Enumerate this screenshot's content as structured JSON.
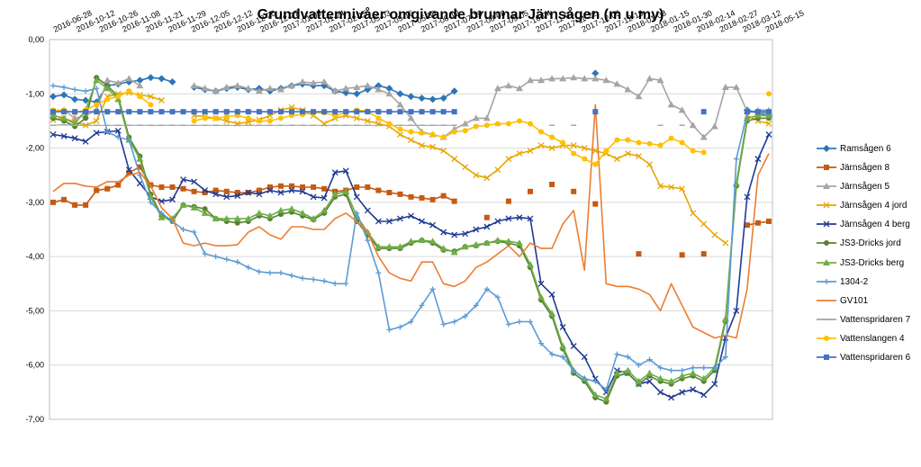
{
  "chart_data": {
    "type": "line",
    "title": "Grundvattennivåer omgivande brunnar Järnsågen (m u my)",
    "xlabel": "",
    "ylabel": "",
    "ylim": [
      -7,
      0
    ],
    "y_ticks": [
      "0,00",
      "-1,00",
      "-2,00",
      "-3,00",
      "-4,00",
      "-5,00",
      "-6,00",
      "-7,00"
    ],
    "y_tick_values": [
      0,
      -1,
      -2,
      -3,
      -4,
      -5,
      -6,
      -7
    ],
    "x_tick_labels": [
      "2016-06-28",
      "2016-10-12",
      "2016-10-26",
      "2016-11-08",
      "2016-11-21",
      "2016-11-29",
      "2016-12-05",
      "2016-12-12",
      "2016-12-20",
      "2016-12-27",
      "2017-01-09",
      "2017-01-24",
      "2017-02-15",
      "2017-05-03",
      "2017-05-16",
      "2017-05-30",
      "2017-06-12",
      "2017-07-10",
      "2017-08-08",
      "2017-09-05",
      "2017-10-04",
      "2017-11-01",
      "2017-11-22",
      "2017-12-05",
      "2017-12-18",
      "2018-01-03",
      "2018-01-15",
      "2018-01-30",
      "2018-02-14",
      "2018-02-27",
      "2018-03-12",
      "2018-05-15"
    ],
    "x_count": 67,
    "grid": "horizontal",
    "legend_position": "right",
    "series": [
      {
        "name": "Ramsågen 6",
        "color": "#2E75B6",
        "marker": "diamond",
        "values": [
          -1.05,
          -1.02,
          -1.1,
          -1.12,
          -1.15,
          -0.85,
          -0.82,
          -0.78,
          -0.75,
          -0.7,
          -0.72,
          -0.78,
          null,
          -0.88,
          -0.92,
          -0.95,
          -0.9,
          -0.88,
          -0.92,
          -0.9,
          -0.95,
          -0.9,
          -0.85,
          -0.82,
          -0.85,
          -0.85,
          -0.95,
          -0.98,
          -1.0,
          -0.92,
          -0.85,
          -0.9,
          -1.0,
          -1.05,
          -1.08,
          -1.1,
          -1.08,
          -0.95,
          null,
          null,
          null,
          null,
          null,
          null,
          null,
          null,
          null,
          null,
          null,
          null,
          -0.62,
          null,
          null,
          null,
          null,
          null,
          null,
          null,
          null,
          null,
          null,
          null,
          null,
          null,
          -1.3,
          -1.35,
          -1.4
        ]
      },
      {
        "name": "Järnsågen 8",
        "color": "#C55A11",
        "marker": "square",
        "values": [
          -3.0,
          -2.95,
          -3.05,
          -3.05,
          -2.78,
          -2.75,
          -2.68,
          -2.45,
          -2.35,
          -2.68,
          -2.72,
          -2.72,
          -2.75,
          -2.8,
          -2.82,
          -2.78,
          -2.8,
          -2.82,
          -2.82,
          -2.78,
          -2.72,
          -2.7,
          -2.7,
          -2.72,
          -2.72,
          -2.75,
          -2.8,
          -2.78,
          -2.72,
          -2.72,
          -2.78,
          -2.82,
          -2.85,
          -2.9,
          -2.92,
          -2.95,
          -2.88,
          -2.98,
          null,
          null,
          -3.28,
          null,
          -2.98,
          null,
          -2.8,
          null,
          -2.67,
          null,
          -2.8,
          null,
          -3.03,
          null,
          null,
          null,
          -3.95,
          null,
          null,
          null,
          -3.97,
          null,
          -3.95,
          null,
          null,
          null,
          -3.42,
          -3.38,
          -3.35
        ]
      },
      {
        "name": "Järnsågen 5",
        "color": "#A5A5A5",
        "marker": "triangle",
        "values": [
          -1.35,
          -1.3,
          -1.45,
          -1.4,
          -1.3,
          -0.75,
          -0.8,
          -0.72,
          -0.85,
          null,
          null,
          null,
          null,
          -0.85,
          -0.9,
          -0.95,
          -0.88,
          -0.85,
          -0.9,
          -0.95,
          -0.9,
          -0.92,
          -0.85,
          -0.78,
          -0.8,
          -0.78,
          -0.95,
          -0.9,
          -0.88,
          -0.85,
          -0.92,
          -1.0,
          -1.2,
          -1.45,
          -1.7,
          -1.75,
          -1.8,
          -1.65,
          -1.55,
          -1.45,
          -1.45,
          -0.9,
          -0.85,
          -0.9,
          -0.75,
          -0.75,
          -0.72,
          -0.72,
          -0.7,
          -0.72,
          -0.72,
          -0.75,
          -0.82,
          -0.92,
          -1.05,
          -0.72,
          -0.75,
          -1.2,
          -1.3,
          -1.58,
          -1.8,
          -1.6,
          -0.88,
          -0.88,
          -1.32,
          -1.35,
          -1.35
        ]
      },
      {
        "name": "Järnsågen 4 jord",
        "color": "#E6A700",
        "marker": "x",
        "values": [
          -1.48,
          -1.45,
          -1.52,
          -1.58,
          -1.5,
          -1.05,
          -1.0,
          -0.98,
          -1.02,
          -1.05,
          -1.12,
          null,
          null,
          -1.4,
          -1.42,
          -1.45,
          -1.5,
          -1.55,
          -1.52,
          -1.48,
          -1.4,
          -1.3,
          -1.25,
          -1.3,
          -1.4,
          -1.55,
          -1.45,
          -1.4,
          -1.45,
          -1.5,
          -1.55,
          -1.6,
          -1.75,
          -1.85,
          -1.95,
          -1.98,
          -2.05,
          -2.2,
          -2.35,
          -2.5,
          -2.55,
          -2.4,
          -2.2,
          -2.1,
          -2.05,
          -1.95,
          -2.0,
          -1.95,
          -1.95,
          -2.0,
          -2.05,
          -2.1,
          -2.2,
          -2.1,
          -2.15,
          -2.3,
          -2.7,
          -2.72,
          -2.75,
          -3.2,
          -3.4,
          -3.6,
          -3.75,
          null,
          -1.4,
          -1.5,
          -1.55
        ]
      },
      {
        "name": "Järnsågen 4 berg",
        "color": "#1F3A93",
        "marker": "x",
        "values": [
          -1.75,
          -1.78,
          -1.82,
          -1.88,
          -1.72,
          -1.7,
          -1.68,
          -2.4,
          -2.65,
          -2.9,
          -2.98,
          -2.95,
          -2.58,
          -2.62,
          -2.78,
          -2.85,
          -2.9,
          -2.88,
          -2.82,
          -2.85,
          -2.78,
          -2.82,
          -2.78,
          -2.8,
          -2.9,
          -2.92,
          -2.45,
          -2.42,
          -2.9,
          -3.15,
          -3.35,
          -3.35,
          -3.3,
          -3.25,
          -3.35,
          -3.42,
          -3.55,
          -3.6,
          -3.58,
          -3.5,
          -3.45,
          -3.35,
          -3.3,
          -3.28,
          -3.3,
          -4.5,
          -4.7,
          -5.3,
          -5.65,
          -5.85,
          -6.25,
          -6.5,
          -6.1,
          -6.15,
          -6.35,
          -6.3,
          -6.5,
          -6.6,
          -6.5,
          -6.45,
          -6.55,
          -6.35,
          -5.5,
          -5.0,
          -2.9,
          -2.2,
          -1.75
        ]
      },
      {
        "name": "JS3-Dricks jord",
        "color": "#548235",
        "marker": "circle",
        "values": [
          -1.45,
          -1.5,
          -1.6,
          -1.45,
          -0.7,
          -0.85,
          -1.05,
          -1.8,
          -2.15,
          -2.85,
          -3.25,
          -3.35,
          -3.05,
          -3.08,
          -3.12,
          -3.3,
          -3.35,
          -3.38,
          -3.35,
          -3.25,
          -3.3,
          -3.22,
          -3.18,
          -3.25,
          -3.32,
          -3.2,
          -2.9,
          -2.85,
          -3.35,
          -3.6,
          -3.85,
          -3.85,
          -3.85,
          -3.75,
          -3.7,
          -3.75,
          -3.88,
          -3.9,
          -3.82,
          -3.8,
          -3.75,
          -3.72,
          -3.75,
          -3.8,
          -4.2,
          -4.8,
          -5.1,
          -5.7,
          -6.15,
          -6.3,
          -6.6,
          -6.68,
          -6.2,
          -6.15,
          -6.35,
          -6.2,
          -6.3,
          -6.35,
          -6.25,
          -6.2,
          -6.3,
          -6.1,
          -5.2,
          -2.7,
          -1.5,
          -1.45,
          -1.45
        ]
      },
      {
        "name": "JS3-Dricks berg",
        "color": "#70AD47",
        "marker": "triangle",
        "values": [
          -1.4,
          -1.45,
          -1.55,
          -1.3,
          -0.75,
          -0.9,
          -1.1,
          -1.85,
          -2.2,
          -2.9,
          -3.28,
          -3.3,
          -3.05,
          -3.1,
          -3.2,
          -3.3,
          -3.3,
          -3.3,
          -3.3,
          -3.2,
          -3.25,
          -3.15,
          -3.12,
          -3.2,
          -3.3,
          -3.15,
          -2.85,
          -2.8,
          -3.25,
          -3.55,
          -3.82,
          -3.82,
          -3.82,
          -3.72,
          -3.7,
          -3.72,
          -3.85,
          -3.92,
          -3.82,
          -3.78,
          -3.75,
          -3.7,
          -3.72,
          -3.75,
          -4.15,
          -4.75,
          -5.05,
          -5.65,
          -6.1,
          -6.25,
          -6.55,
          -6.62,
          -6.15,
          -6.1,
          -6.3,
          -6.15,
          -6.25,
          -6.3,
          -6.2,
          -6.15,
          -6.25,
          -6.05,
          -5.15,
          -2.65,
          -1.45,
          -1.4,
          -1.4
        ]
      },
      {
        "name": "1304-2",
        "color": "#5B9BD5",
        "marker": "plus",
        "values": [
          -0.85,
          -0.88,
          -0.92,
          -0.95,
          -0.9,
          -1.7,
          -1.8,
          -1.85,
          -2.5,
          -3.0,
          -3.2,
          -3.35,
          -3.5,
          -3.55,
          -3.95,
          -4.0,
          -4.05,
          -4.1,
          -4.2,
          -4.28,
          -4.3,
          -4.3,
          -4.35,
          -4.4,
          -4.42,
          -4.45,
          -4.5,
          -4.5,
          -3.2,
          -3.7,
          -4.3,
          -5.35,
          -5.3,
          -5.2,
          -4.9,
          -4.6,
          -5.25,
          -5.2,
          -5.1,
          -4.9,
          -4.6,
          -4.75,
          -5.25,
          -5.2,
          -5.2,
          -5.6,
          -5.8,
          -5.85,
          -6.1,
          -6.25,
          -6.3,
          -6.45,
          -5.8,
          -5.85,
          -6.0,
          -5.9,
          -6.05,
          -6.1,
          -6.1,
          -6.05,
          -6.05,
          -6.05,
          -5.85,
          -2.2,
          -1.35,
          -1.3,
          -1.3
        ]
      },
      {
        "name": "GV101",
        "color": "#ED7D31",
        "marker": "none",
        "values": [
          -2.8,
          -2.65,
          -2.65,
          -2.7,
          -2.72,
          -2.62,
          -2.62,
          -2.5,
          -2.45,
          -2.7,
          -3.1,
          -3.3,
          -3.75,
          -3.8,
          -3.75,
          -3.8,
          -3.8,
          -3.78,
          -3.55,
          -3.45,
          -3.6,
          -3.68,
          -3.45,
          -3.45,
          -3.5,
          -3.5,
          -3.3,
          -3.2,
          -3.35,
          -3.55,
          -4.0,
          -4.3,
          -4.4,
          -4.45,
          -4.1,
          -4.1,
          -4.5,
          -4.55,
          -4.45,
          -4.2,
          -4.1,
          -3.95,
          -3.8,
          -4.0,
          -3.75,
          -3.85,
          -3.85,
          -3.4,
          -3.15,
          -4.25,
          -1.2,
          -4.5,
          -4.55,
          -4.55,
          -4.6,
          -4.7,
          -5.0,
          -4.5,
          -4.9,
          -5.3,
          -5.4,
          -5.5,
          -5.45,
          -5.5,
          -4.6,
          -2.5,
          -2.1
        ]
      },
      {
        "name": "Vattenspridaren 7",
        "color": "#A5A5A5",
        "marker": "dash",
        "values": [
          -1.58,
          -1.57,
          -1.58,
          -1.58,
          -1.58,
          -1.58,
          -1.58,
          -1.58,
          -1.58,
          -1.58,
          -1.58,
          -1.58,
          -1.58,
          -1.58,
          -1.58,
          -1.58,
          -1.58,
          -1.58,
          -1.58,
          -1.58,
          -1.58,
          -1.58,
          -1.58,
          -1.58,
          -1.58,
          -1.58,
          -1.58,
          -1.58,
          -1.58,
          -1.58,
          -1.58,
          -1.58,
          -1.58,
          -1.58,
          -1.58,
          -1.58,
          -1.58,
          -1.58,
          null,
          -1.58,
          null,
          -1.58,
          null,
          null,
          null,
          null,
          -1.58,
          null,
          -1.58,
          null,
          null,
          null,
          null,
          null,
          null,
          null,
          -1.58,
          null,
          -1.58,
          null,
          null,
          null,
          null,
          null,
          null,
          null,
          null
        ]
      },
      {
        "name": "Vattenslangen 4",
        "color": "#FFC000",
        "marker": "circle",
        "values": [
          -1.3,
          -1.3,
          -1.35,
          -1.3,
          -1.2,
          -1.1,
          -1.05,
          -0.95,
          -1.05,
          -1.2,
          null,
          null,
          null,
          -1.5,
          -1.45,
          -1.45,
          -1.42,
          -1.4,
          -1.45,
          -1.5,
          -1.5,
          -1.45,
          -1.4,
          -1.38,
          -1.35,
          -1.35,
          -1.4,
          -1.35,
          -1.3,
          -1.32,
          -1.45,
          -1.55,
          -1.65,
          -1.7,
          -1.72,
          -1.75,
          -1.8,
          -1.7,
          -1.68,
          -1.6,
          -1.58,
          -1.55,
          -1.55,
          -1.5,
          -1.55,
          -1.7,
          -1.8,
          -1.9,
          -2.1,
          -2.2,
          -2.3,
          -2.05,
          -1.85,
          -1.85,
          -1.9,
          -1.92,
          -1.95,
          -1.82,
          -1.9,
          -2.05,
          -2.08,
          null,
          null,
          null,
          null,
          null,
          -1.0
        ]
      },
      {
        "name": "Vattenspridaren 6",
        "color": "#4472C4",
        "marker": "square",
        "values": [
          -1.33,
          -1.33,
          -1.33,
          -1.33,
          -1.33,
          -1.33,
          -1.33,
          -1.33,
          -1.33,
          -1.33,
          -1.33,
          -1.33,
          -1.33,
          -1.33,
          -1.33,
          -1.33,
          -1.33,
          -1.33,
          -1.33,
          -1.33,
          -1.33,
          -1.33,
          -1.33,
          -1.33,
          -1.33,
          -1.33,
          -1.33,
          -1.33,
          -1.33,
          -1.33,
          -1.33,
          -1.33,
          -1.33,
          -1.33,
          -1.33,
          -1.33,
          -1.33,
          -1.33,
          null,
          null,
          null,
          null,
          null,
          null,
          null,
          null,
          null,
          null,
          null,
          null,
          -1.33,
          null,
          null,
          null,
          null,
          null,
          null,
          null,
          null,
          null,
          -1.33,
          null,
          null,
          null,
          -1.33,
          -1.33,
          -1.33
        ]
      }
    ]
  }
}
